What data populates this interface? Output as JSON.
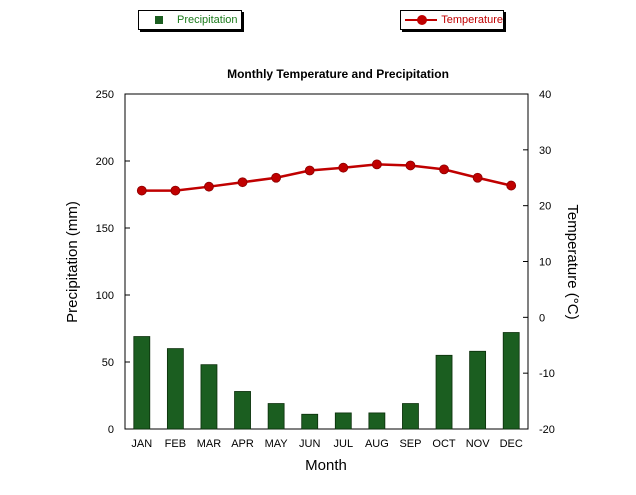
{
  "legend": {
    "precip_label": "Precipitation",
    "temp_label": "Temperature"
  },
  "colors": {
    "bar": "#1b5e20",
    "line": "#c00000",
    "precip_legend_text": "#1b7a1b",
    "temp_legend_text": "#c00000"
  },
  "chart_data": {
    "type": "bar",
    "title": "Monthly Temperature and Precipitation",
    "xlabel": "Month",
    "ylabel": "Precipitation (mm)",
    "y2label": "Temperature (°C)",
    "ylim": [
      0,
      250
    ],
    "y2lim": [
      -20,
      40
    ],
    "yticks": [
      0,
      50,
      100,
      150,
      200,
      250
    ],
    "y2ticks": [
      -20,
      -10,
      0,
      10,
      20,
      30,
      40
    ],
    "categories": [
      "JAN",
      "FEB",
      "MAR",
      "APR",
      "MAY",
      "JUN",
      "JUL",
      "AUG",
      "SEP",
      "OCT",
      "NOV",
      "DEC"
    ],
    "series": [
      {
        "name": "Precipitation",
        "type": "bar",
        "axis": "left",
        "values": [
          69,
          60,
          48,
          28,
          19,
          11,
          12,
          12,
          19,
          55,
          58,
          72
        ]
      },
      {
        "name": "Temperature",
        "type": "line",
        "axis": "right",
        "values": [
          22.7,
          22.7,
          23.4,
          24.2,
          25.0,
          26.3,
          26.8,
          27.4,
          27.2,
          26.5,
          25.0,
          23.6
        ]
      }
    ]
  }
}
